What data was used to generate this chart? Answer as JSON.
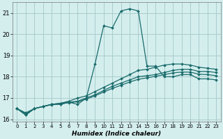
{
  "xlabel": "Humidex (Indice chaleur)",
  "ylabel": "",
  "background_color": "#d4eeee",
  "grid_color": "#aacccc",
  "line_color": "#1a6b6b",
  "xlim": [
    -0.5,
    23.5
  ],
  "ylim": [
    15.9,
    21.5
  ],
  "yticks": [
    16,
    17,
    18,
    19,
    20,
    21
  ],
  "xticks": [
    0,
    1,
    2,
    3,
    4,
    5,
    6,
    7,
    8,
    9,
    10,
    11,
    12,
    13,
    14,
    15,
    16,
    17,
    18,
    19,
    20,
    21,
    22,
    23
  ],
  "series": [
    {
      "x": [
        0,
        1,
        2,
        3,
        4,
        5,
        6,
        7,
        8,
        9,
        10,
        11,
        12,
        13,
        14,
        15,
        16,
        17,
        18,
        19,
        20,
        21,
        22,
        23
      ],
      "y": [
        16.5,
        16.2,
        16.5,
        16.6,
        16.7,
        16.7,
        16.8,
        16.7,
        17.0,
        18.6,
        20.4,
        20.3,
        21.1,
        21.2,
        21.1,
        18.5,
        18.5,
        18.0,
        18.0,
        18.1,
        18.1,
        17.9,
        17.9,
        17.85
      ]
    },
    {
      "x": [
        0,
        1,
        2,
        3,
        4,
        5,
        6,
        7,
        8,
        9,
        10,
        11,
        12,
        13,
        14,
        15,
        16,
        17,
        18,
        19,
        20,
        21,
        22,
        23
      ],
      "y": [
        16.5,
        16.2,
        16.5,
        16.6,
        16.7,
        16.75,
        16.85,
        17.0,
        17.1,
        17.3,
        17.5,
        17.7,
        17.9,
        18.1,
        18.3,
        18.35,
        18.45,
        18.55,
        18.6,
        18.6,
        18.55,
        18.45,
        18.4,
        18.35
      ]
    },
    {
      "x": [
        0,
        1,
        2,
        3,
        4,
        5,
        6,
        7,
        8,
        9,
        10,
        11,
        12,
        13,
        14,
        15,
        16,
        17,
        18,
        19,
        20,
        21,
        22,
        23
      ],
      "y": [
        16.5,
        16.25,
        16.5,
        16.6,
        16.7,
        16.75,
        16.8,
        16.85,
        17.0,
        17.15,
        17.35,
        17.55,
        17.7,
        17.85,
        18.0,
        18.05,
        18.1,
        18.2,
        18.3,
        18.35,
        18.35,
        18.25,
        18.25,
        18.2
      ]
    },
    {
      "x": [
        0,
        1,
        2,
        3,
        4,
        5,
        6,
        7,
        8,
        9,
        10,
        11,
        12,
        13,
        14,
        15,
        16,
        17,
        18,
        19,
        20,
        21,
        22,
        23
      ],
      "y": [
        16.5,
        16.3,
        16.5,
        16.6,
        16.68,
        16.72,
        16.78,
        16.82,
        16.95,
        17.1,
        17.28,
        17.45,
        17.6,
        17.75,
        17.88,
        17.95,
        18.02,
        18.1,
        18.18,
        18.22,
        18.22,
        18.12,
        18.1,
        18.05
      ]
    }
  ]
}
